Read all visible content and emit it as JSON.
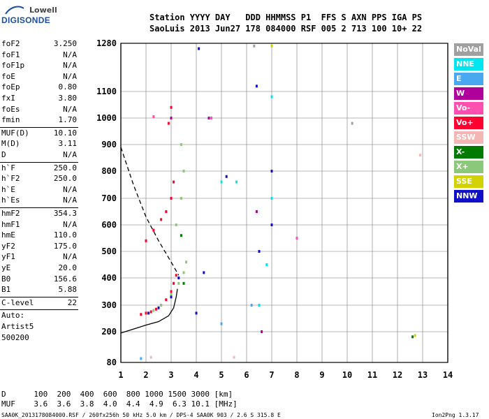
{
  "logo": {
    "line1": "Lowell",
    "line2": "DIGISONDE"
  },
  "header": {
    "line1": "Station YYYY DAY   DDD HHMMSS P1  FFS S AXN PPS IGA PS",
    "line2": "SaoLuis 2013 Jun27 178 084000 RSF 005 2 713 100 10+ 22"
  },
  "params": {
    "group1": [
      {
        "name": "foF2",
        "value": "3.250"
      },
      {
        "name": "foF1",
        "value": "N/A"
      },
      {
        "name": "foF1p",
        "value": "N/A"
      },
      {
        "name": "foE",
        "value": "N/A"
      },
      {
        "name": "foEp",
        "value": "0.80"
      },
      {
        "name": "fxI",
        "value": "3.80"
      },
      {
        "name": "foEs",
        "value": "N/A"
      },
      {
        "name": "fmin",
        "value": "1.70"
      }
    ],
    "group2": [
      {
        "name": "MUF(D)",
        "value": "10.10"
      },
      {
        "name": "M(D)",
        "value": "3.11"
      },
      {
        "name": "D",
        "value": "N/A"
      }
    ],
    "group3": [
      {
        "name": "h`F",
        "value": "250.0"
      },
      {
        "name": "h`F2",
        "value": "250.0"
      },
      {
        "name": "h`E",
        "value": "N/A"
      },
      {
        "name": "h`Es",
        "value": "N/A"
      }
    ],
    "group4": [
      {
        "name": "hmF2",
        "value": "354.3"
      },
      {
        "name": "hmF1",
        "value": "N/A"
      },
      {
        "name": "hmE",
        "value": "110.0"
      },
      {
        "name": "yF2",
        "value": "175.0"
      },
      {
        "name": "yF1",
        "value": "N/A"
      },
      {
        "name": "yE",
        "value": "20.0"
      },
      {
        "name": "B0",
        "value": "156.6"
      },
      {
        "name": "B1",
        "value": "5.88"
      }
    ],
    "clevel": {
      "name": "C-level",
      "value": "22"
    },
    "auto": [
      "Auto:",
      "Artist5",
      "500200"
    ]
  },
  "legend": [
    {
      "label": "NoVal",
      "color": "#a0a0a0"
    },
    {
      "label": "NNE",
      "color": "#00e5ee"
    },
    {
      "label": "E",
      "color": "#4aa8f0"
    },
    {
      "label": "W",
      "color": "#b0009c"
    },
    {
      "label": "Vo-",
      "color": "#ff4fb0"
    },
    {
      "label": "Vo+",
      "color": "#ff0030"
    },
    {
      "label": "SSW",
      "color": "#f4b6b4"
    },
    {
      "label": "X-",
      "color": "#007a00"
    },
    {
      "label": "X+",
      "color": "#8cc87a"
    },
    {
      "label": "SSE",
      "color": "#d2d200"
    },
    {
      "label": "NNW",
      "color": "#1010c8"
    }
  ],
  "chart_data": {
    "type": "scatter",
    "title": "",
    "xlabel": "",
    "ylabel": "",
    "x_ticks": [
      "1",
      "2",
      "3",
      "4",
      "5",
      "6",
      "7",
      "8",
      "9",
      "10",
      "11",
      "12",
      "13",
      "14"
    ],
    "y_ticks": [
      "80",
      "200",
      "300",
      "400",
      "500",
      "600",
      "700",
      "800",
      "900",
      "1000",
      "1100",
      "1280"
    ],
    "xlim": [
      1,
      14
    ],
    "ylim": [
      80,
      1280
    ],
    "grid": true,
    "series": [
      {
        "name": "Vo+",
        "color": "#ff0030",
        "points": [
          [
            1.8,
            265
          ],
          [
            2.0,
            270
          ],
          [
            2.2,
            275
          ],
          [
            2.4,
            285
          ],
          [
            2.6,
            300
          ],
          [
            2.8,
            320
          ],
          [
            3.0,
            350
          ],
          [
            3.1,
            380
          ],
          [
            3.2,
            410
          ],
          [
            2.0,
            540
          ],
          [
            2.3,
            580
          ],
          [
            2.6,
            620
          ],
          [
            2.8,
            650
          ],
          [
            3.0,
            700
          ],
          [
            3.1,
            760
          ],
          [
            2.9,
            980
          ],
          [
            3.0,
            1040
          ]
        ]
      },
      {
        "name": "X+",
        "color": "#8cc87a",
        "points": [
          [
            2.3,
            280
          ],
          [
            2.6,
            300
          ],
          [
            3.0,
            340
          ],
          [
            3.3,
            380
          ],
          [
            3.5,
            420
          ],
          [
            3.6,
            460
          ],
          [
            3.2,
            600
          ],
          [
            3.4,
            700
          ],
          [
            3.5,
            800
          ],
          [
            3.4,
            900
          ]
        ]
      },
      {
        "name": "NNW",
        "color": "#1010c8",
        "points": [
          [
            2.1,
            270
          ],
          [
            2.5,
            290
          ],
          [
            3.0,
            330
          ],
          [
            3.3,
            400
          ],
          [
            4.0,
            270
          ],
          [
            4.3,
            420
          ],
          [
            5.2,
            780
          ],
          [
            6.5,
            500
          ],
          [
            7.0,
            600
          ],
          [
            7.0,
            800
          ],
          [
            4.1,
            1260
          ],
          [
            6.4,
            1120
          ]
        ]
      },
      {
        "name": "NNE",
        "color": "#00e5ee",
        "points": [
          [
            6.5,
            300
          ],
          [
            6.8,
            450
          ],
          [
            7.0,
            700
          ],
          [
            5.0,
            760
          ],
          [
            5.6,
            760
          ],
          [
            7.0,
            1080
          ]
        ]
      },
      {
        "name": "W",
        "color": "#b0009c",
        "points": [
          [
            3.0,
            1000
          ],
          [
            4.5,
            1000
          ],
          [
            6.4,
            650
          ],
          [
            6.6,
            200
          ]
        ]
      },
      {
        "name": "X-",
        "color": "#007a00",
        "points": [
          [
            3.5,
            380
          ],
          [
            3.4,
            560
          ],
          [
            12.6,
            180
          ]
        ]
      },
      {
        "name": "SSE",
        "color": "#d2d200",
        "points": [
          [
            7.0,
            1270
          ],
          [
            12.7,
            185
          ]
        ]
      },
      {
        "name": "E",
        "color": "#4aa8f0",
        "points": [
          [
            1.8,
            95
          ],
          [
            5.0,
            230
          ],
          [
            6.2,
            300
          ]
        ]
      },
      {
        "name": "Vo-",
        "color": "#ff4fb0",
        "points": [
          [
            2.3,
            1005
          ],
          [
            4.6,
            1000
          ],
          [
            8.0,
            550
          ]
        ]
      },
      {
        "name": "SSW",
        "color": "#f4b6b4",
        "points": [
          [
            2.2,
            100
          ],
          [
            5.5,
            100
          ],
          [
            12.9,
            860
          ]
        ]
      },
      {
        "name": "NoVal",
        "color": "#a0a0a0",
        "points": [
          [
            6.3,
            1270
          ],
          [
            10.2,
            980
          ]
        ]
      }
    ],
    "profile_line": [
      [
        1.0,
        195
      ],
      [
        1.5,
        210
      ],
      [
        2.0,
        225
      ],
      [
        2.5,
        238
      ],
      [
        2.9,
        260
      ],
      [
        3.1,
        290
      ],
      [
        3.2,
        330
      ],
      [
        3.25,
        360
      ]
    ],
    "dashed_line": [
      [
        1.0,
        890
      ],
      [
        1.5,
        750
      ],
      [
        2.0,
        630
      ],
      [
        2.5,
        540
      ],
      [
        3.0,
        460
      ],
      [
        3.3,
        410
      ]
    ]
  },
  "footer": {
    "d_row": "D      100  200  400  600  800 1000 1500 3000 [km]",
    "muf_row": "MUF    3.6  3.6  3.8  4.0  4.4  4.9  6.3 10.1 [MHz]",
    "bottom_left": "SAA0K_2013178084000.RSF / 260fx256h 50 kHz 5.0 km / DPS-4 SAA0K 903 / 2.6 S 315.8 E",
    "bottom_right": "Ion2Png 1.3.17"
  }
}
